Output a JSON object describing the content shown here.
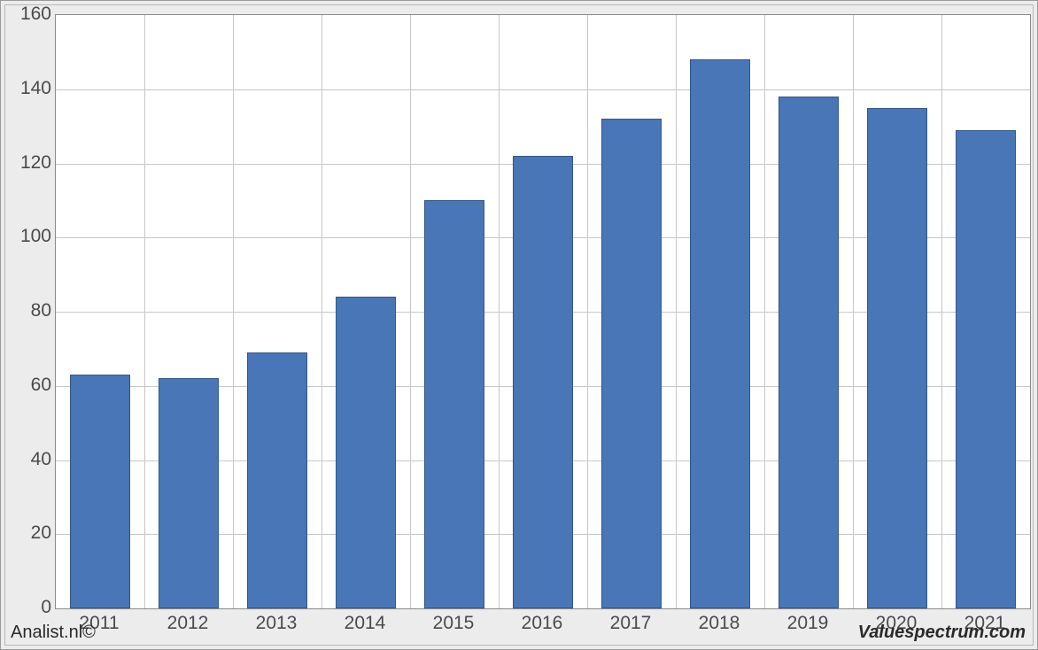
{
  "chart": {
    "type": "bar",
    "background_color": "#ffffff",
    "outer_background": "#ececec",
    "grid_color": "#c7c7c7",
    "axis_color": "#8a8a8a",
    "bar_fill": "#4876b6",
    "bar_border": "#33578a",
    "label_color": "#4a4a4a",
    "label_fontsize": 21,
    "ylim_min": 0,
    "ylim_max": 160,
    "ytick_step": 20,
    "categories": [
      "2011",
      "2012",
      "2013",
      "2014",
      "2015",
      "2016",
      "2017",
      "2018",
      "2019",
      "2020",
      "2021"
    ],
    "values": [
      63,
      62,
      69,
      84,
      110,
      122,
      132,
      148,
      138,
      135,
      129
    ],
    "bar_width_ratio": 0.68
  },
  "footer": {
    "left": "Analist.nl©",
    "right": "Valuespectrum.com"
  }
}
